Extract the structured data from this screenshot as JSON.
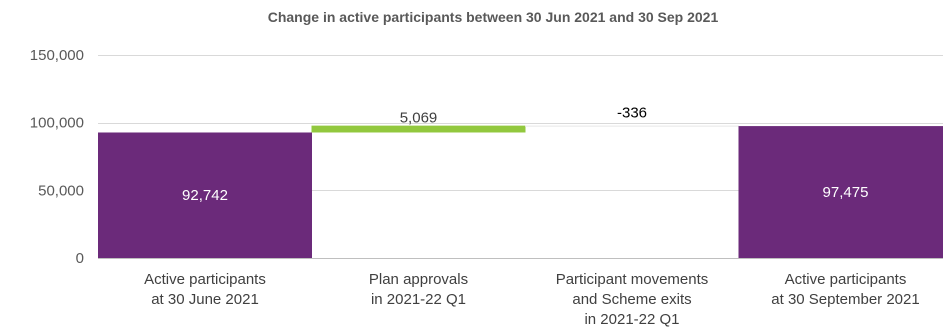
{
  "chart_data": {
    "type": "bar",
    "subtype": "waterfall",
    "title": "Change in active participants between 30 Jun 2021 and 30 Sep 2021",
    "categories": [
      [
        "Active participants",
        "at 30 June 2021"
      ],
      [
        "Plan approvals",
        "in 2021-22 Q1"
      ],
      [
        "Participant movements",
        "and Scheme exits",
        "in 2021-22 Q1"
      ],
      [
        "Active participants",
        "at 30 September 2021"
      ]
    ],
    "steps": [
      {
        "kind": "total",
        "value": 92742,
        "label": "92,742",
        "color": "#6b2a7a"
      },
      {
        "kind": "delta",
        "value": 5069,
        "label": "5,069",
        "color": "#92c83e"
      },
      {
        "kind": "delta",
        "value": -336,
        "label": "-336",
        "color": "#e7e7e7"
      },
      {
        "kind": "total",
        "value": 97475,
        "label": "97,475",
        "color": "#6b2a7a"
      }
    ],
    "ylim": [
      0,
      150000
    ],
    "yticks": [
      0,
      50000,
      100000,
      150000
    ],
    "ytick_labels": [
      "0",
      "50,000",
      "100,000",
      "150,000"
    ],
    "grid": true,
    "legend": "none"
  },
  "colors": {
    "total": "#6b2a7a",
    "increase": "#92c83e",
    "grid": "#d9d9d9",
    "text": "#595959"
  }
}
